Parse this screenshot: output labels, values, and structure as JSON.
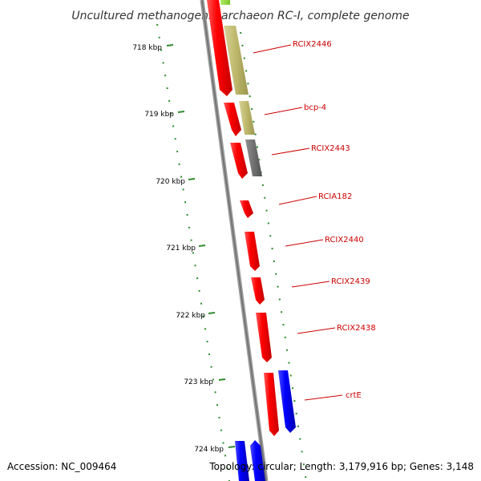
{
  "title": "Uncultured methanogenic archaeon RC-I, complete genome",
  "footer": {
    "accession": "Accession: NC_009464",
    "topology": "Topology: circular; Length: 3,179,916 bp; Genes: 3,148"
  },
  "scale_ticks": [
    "718 kbp",
    "719 kbp",
    "720 kbp",
    "721 kbp",
    "722 kbp",
    "723 kbp",
    "724 kbp"
  ],
  "gene_labels": [
    "RCIX2446",
    "bcp-4",
    "RCIX2443",
    "RCIA182",
    "RCIX2440",
    "RCIX2439",
    "RCIX2438",
    "crtE"
  ],
  "colors": {
    "strand_minus": "#ff0000",
    "strand_plus": "#0000ff",
    "feature_olive": "#bdb76b",
    "feature_gray": "#707070",
    "feature_green": "#8bd635",
    "label": "#cc0000",
    "dots": "#2e8b2e"
  }
}
